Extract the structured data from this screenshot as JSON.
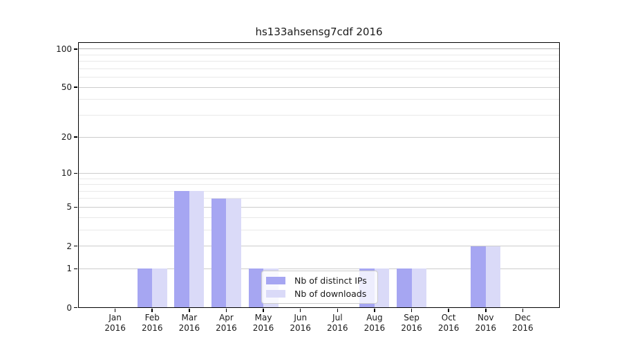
{
  "title": "hs133ahsensg7cdf 2016",
  "chart_data": {
    "type": "bar",
    "title": "hs133ahsensg7cdf 2016",
    "year": "2016",
    "categories": [
      "Jan 2016",
      "Feb 2016",
      "Mar 2016",
      "Apr 2016",
      "May 2016",
      "Jun 2016",
      "Jul 2016",
      "Aug 2016",
      "Sep 2016",
      "Oct 2016",
      "Nov 2016",
      "Dec 2016"
    ],
    "month_labels": [
      "Jan",
      "Feb",
      "Mar",
      "Apr",
      "May",
      "Jun",
      "Jul",
      "Aug",
      "Sep",
      "Oct",
      "Nov",
      "Dec"
    ],
    "series": [
      {
        "name": "Nb of distinct IPs",
        "color": "#a6a6f2",
        "values": [
          0,
          1,
          7,
          6,
          1,
          0,
          0,
          1,
          1,
          0,
          2,
          0
        ]
      },
      {
        "name": "Nb of downloads",
        "color": "#dadaf8",
        "values": [
          0,
          1,
          7,
          6,
          1,
          0,
          0,
          1,
          1,
          0,
          2,
          0
        ]
      }
    ],
    "y_axis": {
      "scale": "log10(1+y)",
      "major_ticks": [
        100,
        50,
        20,
        10,
        5,
        2,
        1,
        0
      ],
      "minor_gridlines": [
        3,
        4,
        6,
        7,
        8,
        9,
        30,
        40,
        60,
        70,
        80,
        90
      ],
      "ylim": [
        0,
        113
      ]
    },
    "x_axis": {
      "tick_labels": [
        "Jan 2016",
        "Feb 2016",
        "Mar 2016",
        "Apr 2016",
        "May 2016",
        "Jun 2016",
        "Jul 2016",
        "Aug 2016",
        "Sep 2016",
        "Oct 2016",
        "Nov 2016",
        "Dec 2016"
      ]
    },
    "legend": {
      "entries": [
        "Nb of distinct IPs",
        "Nb of downloads"
      ],
      "position": "lower-center"
    },
    "grid": true
  },
  "colors": {
    "bar_dark": "#a6a6f2",
    "bar_light": "#dadaf8",
    "grid_major": "#cccccc",
    "grid_minor": "#e9e9e9",
    "grid_top": "#b3b3b3",
    "spine": "#000000",
    "text": "#1a1a1a",
    "legend_border": "#cccccc"
  }
}
